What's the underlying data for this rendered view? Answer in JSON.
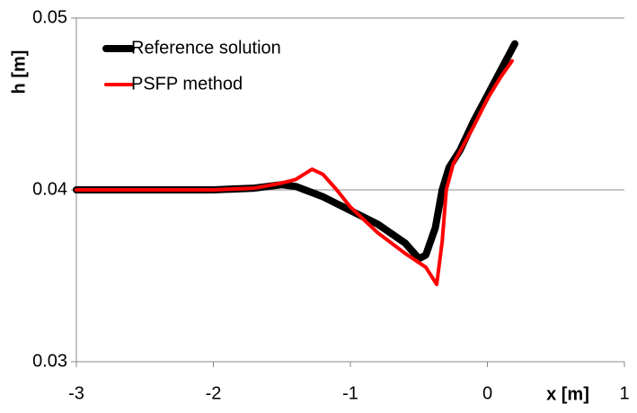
{
  "chart_data": {
    "type": "line",
    "x_label": "x [m]",
    "y_label": "h [m]",
    "xlim": [
      -3,
      1
    ],
    "xticks": [
      -3,
      -2,
      -1,
      0,
      1
    ],
    "ylim": [
      0.03,
      0.05
    ],
    "yticks": [
      0.03,
      0.04,
      0.05
    ],
    "grid": true,
    "legend": "top-left",
    "series": [
      {
        "name": "Reference solution",
        "color": "#000000",
        "x": [
          -3,
          -2,
          -1.7,
          -1.5,
          -1.4,
          -1.2,
          -1,
          -0.8,
          -0.6,
          -0.5,
          -0.45,
          -0.38,
          -0.33,
          -0.28,
          -0.2,
          -0.1,
          0,
          0.1,
          0.2
        ],
        "values": [
          0.04,
          0.04,
          0.0401,
          0.0403,
          0.0402,
          0.0396,
          0.0388,
          0.038,
          0.0369,
          0.036,
          0.0362,
          0.0378,
          0.04,
          0.0413,
          0.0423,
          0.044,
          0.0455,
          0.047,
          0.0485
        ]
      },
      {
        "name": "PSFP method",
        "color": "#ff0000",
        "x": [
          -3,
          -2,
          -1.7,
          -1.5,
          -1.4,
          -1.28,
          -1.2,
          -1.1,
          -1,
          -0.8,
          -0.6,
          -0.45,
          -0.37,
          -0.33,
          -0.3,
          -0.25,
          -0.1,
          0,
          0.1,
          0.18
        ],
        "values": [
          0.04,
          0.04,
          0.0401,
          0.0404,
          0.0406,
          0.0412,
          0.0409,
          0.04,
          0.039,
          0.0375,
          0.0363,
          0.0355,
          0.0345,
          0.037,
          0.04,
          0.0415,
          0.0437,
          0.0453,
          0.0466,
          0.0475
        ]
      }
    ]
  }
}
